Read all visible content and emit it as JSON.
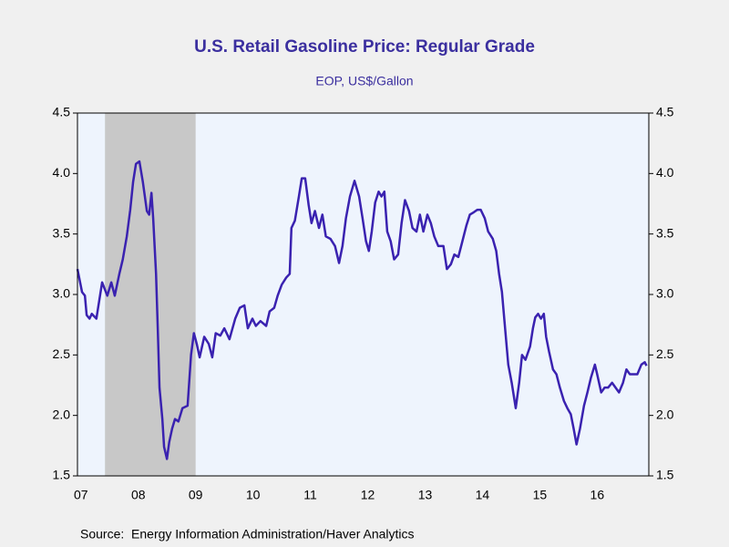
{
  "chart_data": {
    "type": "line",
    "title": "U.S. Retail Gasoline Price: Regular Grade",
    "subtitle": "EOP, US$/Gallon",
    "source": "Source:  Energy Information Administration/Haver Analytics",
    "xlim": [
      2007.44,
      2017.4
    ],
    "xticks": [
      {
        "value": 2007.5,
        "label": "07"
      },
      {
        "value": 2008.5,
        "label": "08"
      },
      {
        "value": 2009.5,
        "label": "09"
      },
      {
        "value": 2010.5,
        "label": "10"
      },
      {
        "value": 2011.5,
        "label": "11"
      },
      {
        "value": 2012.5,
        "label": "12"
      },
      {
        "value": 2013.5,
        "label": "13"
      },
      {
        "value": 2014.5,
        "label": "14"
      },
      {
        "value": 2015.5,
        "label": "15"
      },
      {
        "value": 2016.5,
        "label": "16"
      }
    ],
    "ylim": [
      1.5,
      4.5
    ],
    "yticks": [
      4.5,
      {
        "value": 4,
        "label": "4.0"
      },
      3.5,
      {
        "value": 3,
        "label": "3.0"
      },
      2.5,
      {
        "value": 2,
        "label": "2.0"
      },
      1.5
    ],
    "shading": [
      {
        "x0": 2007.92,
        "x1": 2009.5,
        "color": "#c8c8c8"
      }
    ],
    "x": [
      2007.44,
      2007.52,
      2007.57,
      2007.6,
      2007.65,
      2007.69,
      2007.77,
      2007.87,
      2007.96,
      2008.03,
      2008.09,
      2008.17,
      2008.23,
      2008.3,
      2008.36,
      2008.41,
      2008.46,
      2008.52,
      2008.58,
      2008.65,
      2008.69,
      2008.73,
      2008.76,
      2008.81,
      2008.84,
      2008.87,
      2008.92,
      2008.95,
      2009.0,
      2009.04,
      2009.09,
      2009.14,
      2009.2,
      2009.27,
      2009.36,
      2009.42,
      2009.47,
      2009.52,
      2009.57,
      2009.65,
      2009.73,
      2009.79,
      2009.85,
      2009.93,
      2010.0,
      2010.09,
      2010.19,
      2010.27,
      2010.35,
      2010.41,
      2010.49,
      2010.55,
      2010.63,
      2010.73,
      2010.79,
      2010.87,
      2010.93,
      2011.0,
      2011.08,
      2011.14,
      2011.17,
      2011.23,
      2011.3,
      2011.35,
      2011.41,
      2011.47,
      2011.52,
      2011.58,
      2011.65,
      2011.71,
      2011.77,
      2011.85,
      2011.93,
      2012.0,
      2012.06,
      2012.12,
      2012.19,
      2012.27,
      2012.35,
      2012.41,
      2012.47,
      2012.52,
      2012.57,
      2012.63,
      2012.69,
      2012.74,
      2012.79,
      2012.84,
      2012.9,
      2012.96,
      2013.03,
      2013.09,
      2013.15,
      2013.22,
      2013.28,
      2013.35,
      2013.41,
      2013.47,
      2013.54,
      2013.6,
      2013.66,
      2013.73,
      2013.82,
      2013.88,
      2013.95,
      2014.01,
      2014.08,
      2014.15,
      2014.22,
      2014.28,
      2014.35,
      2014.41,
      2014.47,
      2014.54,
      2014.6,
      2014.68,
      2014.74,
      2014.79,
      2014.84,
      2014.88,
      2014.95,
      2015.01,
      2015.08,
      2015.14,
      2015.19,
      2015.25,
      2015.33,
      2015.38,
      2015.42,
      2015.47,
      2015.52,
      2015.57,
      2015.61,
      2015.66,
      2015.73,
      2015.79,
      2015.85,
      2015.92,
      2015.98,
      2016.04,
      2016.09,
      2016.14,
      2016.2,
      2016.27,
      2016.33,
      2016.39,
      2016.46,
      2016.5,
      2016.57,
      2016.63,
      2016.69,
      2016.76,
      2016.82,
      2016.88,
      2016.95,
      2017.01,
      2017.07,
      2017.14,
      2017.2,
      2017.27,
      2017.33,
      2017.36
    ],
    "series": [
      {
        "name": "Regular Grade",
        "color": "#3a22b0",
        "values": [
          3.21,
          3.02,
          2.99,
          2.83,
          2.8,
          2.84,
          2.8,
          3.1,
          2.99,
          3.1,
          2.99,
          3.17,
          3.29,
          3.48,
          3.7,
          3.93,
          4.08,
          4.1,
          3.93,
          3.69,
          3.66,
          3.84,
          3.63,
          3.17,
          2.72,
          2.23,
          1.97,
          1.74,
          1.64,
          1.78,
          1.89,
          1.97,
          1.95,
          2.06,
          2.08,
          2.5,
          2.68,
          2.59,
          2.48,
          2.65,
          2.59,
          2.48,
          2.68,
          2.66,
          2.72,
          2.63,
          2.8,
          2.89,
          2.91,
          2.72,
          2.8,
          2.74,
          2.78,
          2.74,
          2.86,
          2.89,
          2.99,
          3.08,
          3.14,
          3.17,
          3.55,
          3.61,
          3.81,
          3.96,
          3.96,
          3.74,
          3.59,
          3.69,
          3.55,
          3.66,
          3.48,
          3.46,
          3.4,
          3.26,
          3.4,
          3.63,
          3.81,
          3.94,
          3.81,
          3.63,
          3.44,
          3.36,
          3.52,
          3.76,
          3.85,
          3.81,
          3.85,
          3.52,
          3.44,
          3.29,
          3.33,
          3.59,
          3.78,
          3.69,
          3.55,
          3.52,
          3.66,
          3.52,
          3.66,
          3.59,
          3.48,
          3.4,
          3.4,
          3.21,
          3.25,
          3.33,
          3.31,
          3.44,
          3.57,
          3.66,
          3.68,
          3.7,
          3.7,
          3.63,
          3.52,
          3.46,
          3.36,
          3.17,
          3.02,
          2.8,
          2.42,
          2.27,
          2.06,
          2.27,
          2.5,
          2.46,
          2.57,
          2.72,
          2.81,
          2.84,
          2.8,
          2.84,
          2.65,
          2.53,
          2.38,
          2.34,
          2.23,
          2.12,
          2.06,
          2.01,
          1.89,
          1.76,
          1.89,
          2.08,
          2.19,
          2.31,
          2.42,
          2.34,
          2.19,
          2.23,
          2.23,
          2.27,
          2.23,
          2.19,
          2.27,
          2.38,
          2.34,
          2.34,
          2.34,
          2.42,
          2.44,
          2.41
        ]
      }
    ]
  }
}
